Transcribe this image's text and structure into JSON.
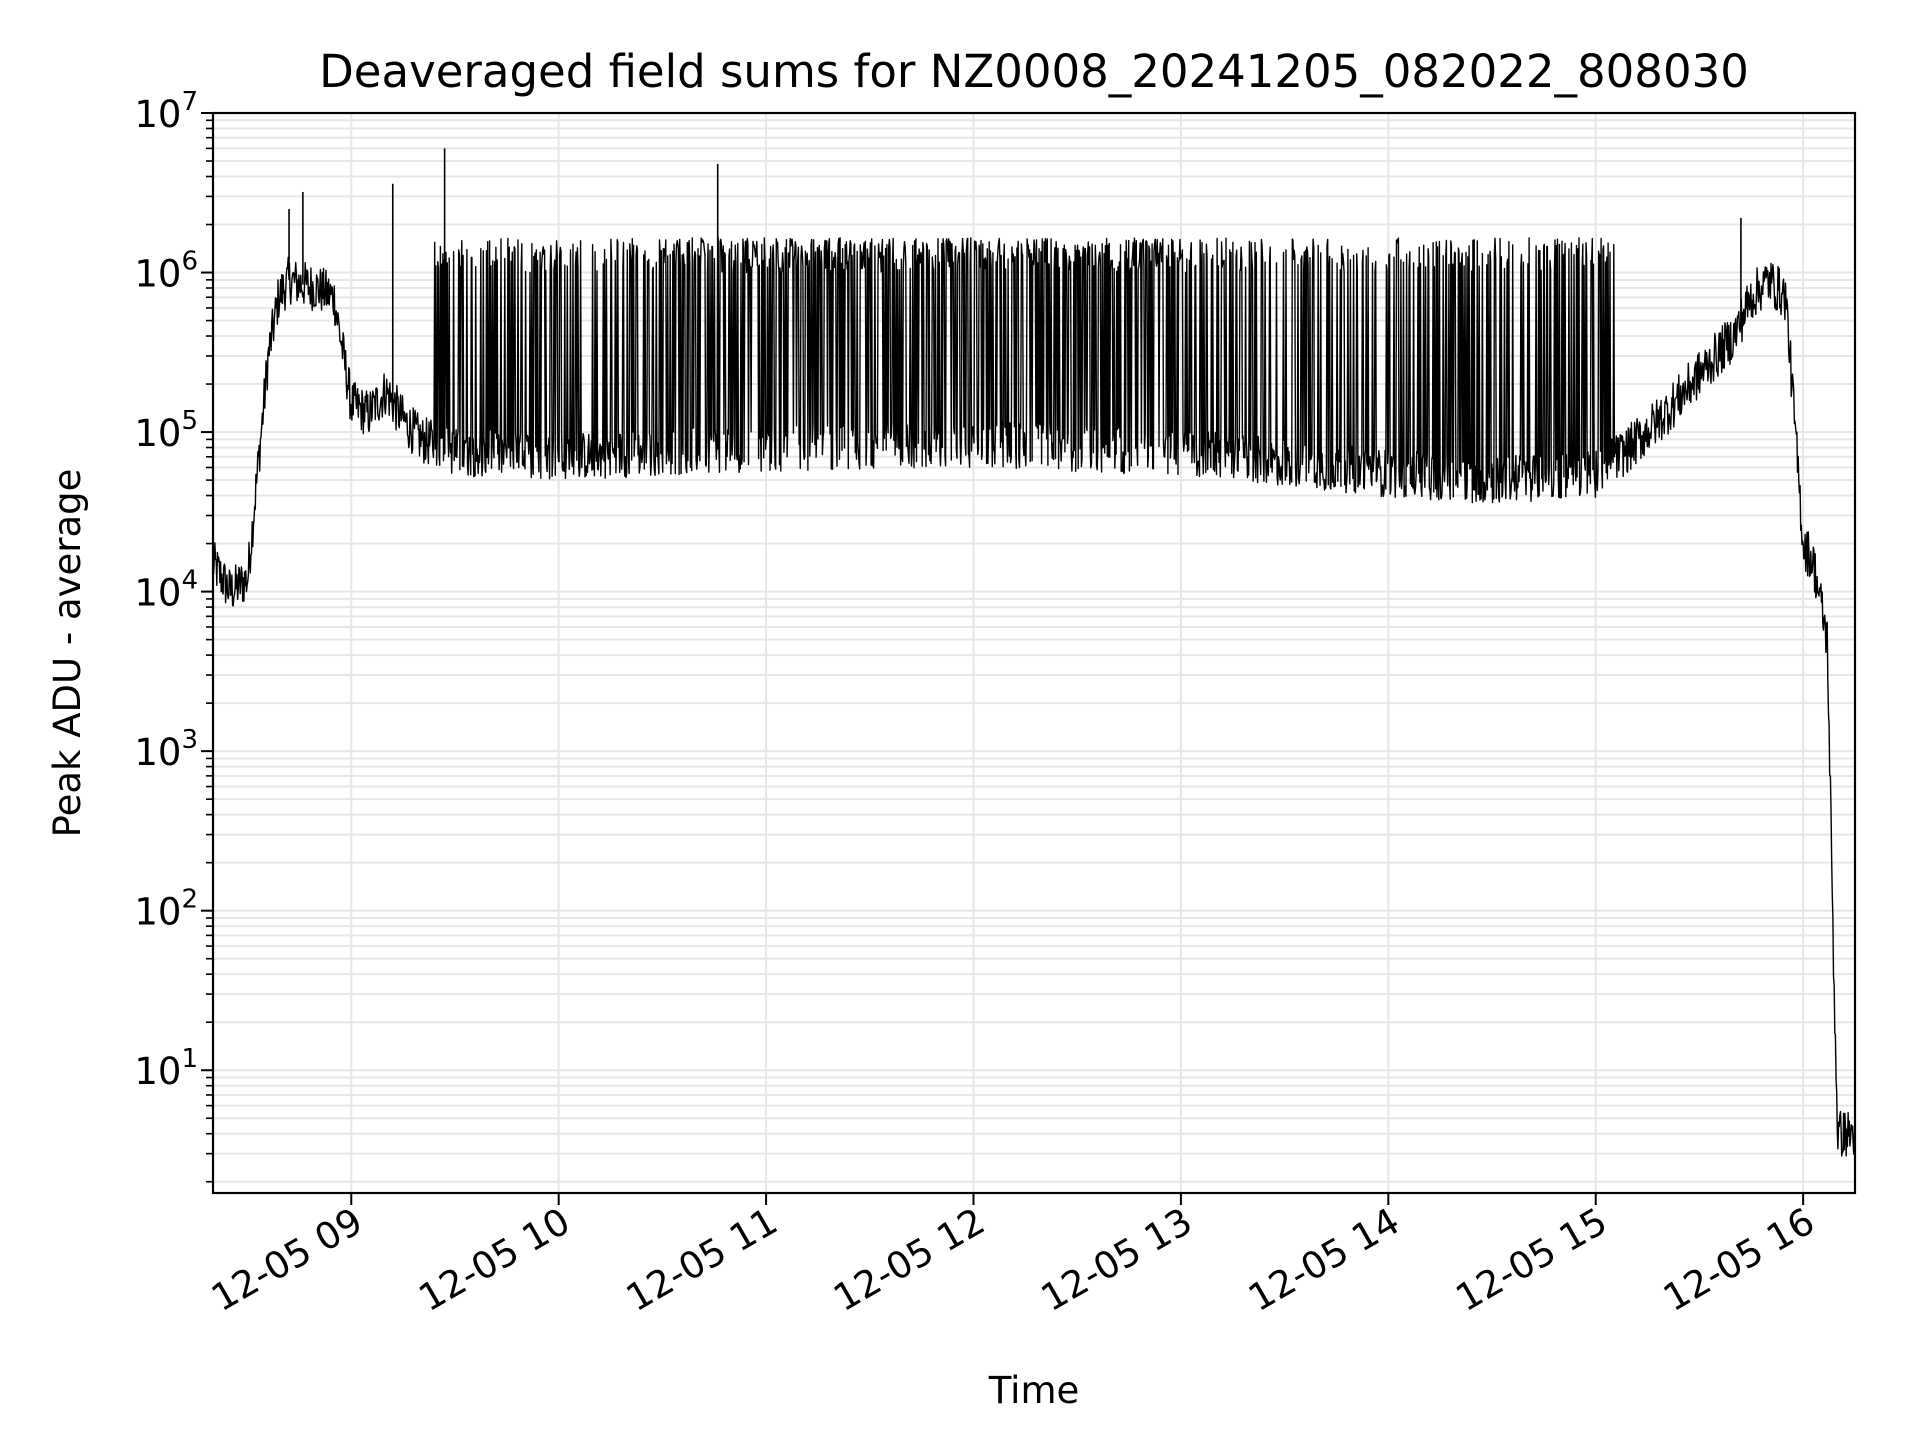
{
  "chart_data": {
    "type": "line",
    "title": "Deaveraged field sums for NZ0008_20241205_082022_808030",
    "xlabel": "Time",
    "ylabel": "Peak ADU - average",
    "yscale": "log",
    "ylim": [
      1.7,
      10000000
    ],
    "xlim": [
      "2024-12-05 08:20",
      "2024-12-05 16:15"
    ],
    "grid": true,
    "line_color": "#000000",
    "grid_color": "#e6e6e6",
    "x_ticks": [
      {
        "time": "2024-12-05 09:00",
        "label": "12-05 09"
      },
      {
        "time": "2024-12-05 10:00",
        "label": "12-05 10"
      },
      {
        "time": "2024-12-05 11:00",
        "label": "12-05 11"
      },
      {
        "time": "2024-12-05 12:00",
        "label": "12-05 12"
      },
      {
        "time": "2024-12-05 13:00",
        "label": "12-05 13"
      },
      {
        "time": "2024-12-05 14:00",
        "label": "12-05 14"
      },
      {
        "time": "2024-12-05 15:00",
        "label": "12-05 15"
      },
      {
        "time": "2024-12-05 16:00",
        "label": "12-05 16"
      }
    ],
    "y_ticks": [
      {
        "value": 10,
        "base": "10",
        "exp": "1"
      },
      {
        "value": 100,
        "base": "10",
        "exp": "2"
      },
      {
        "value": 1000,
        "base": "10",
        "exp": "3"
      },
      {
        "value": 10000,
        "base": "10",
        "exp": "4"
      },
      {
        "value": 100000,
        "base": "10",
        "exp": "5"
      },
      {
        "value": 1000000,
        "base": "10",
        "exp": "6"
      },
      {
        "value": 10000000,
        "base": "10",
        "exp": "7"
      }
    ],
    "series": [
      {
        "baseline": {
          "x": [
            "2024-12-05 08:20",
            "2024-12-05 08:25",
            "2024-12-05 08:30",
            "2024-12-05 08:33",
            "2024-12-05 08:36",
            "2024-12-05 08:39",
            "2024-12-05 08:42",
            "2024-12-05 08:45",
            "2024-12-05 08:50",
            "2024-12-05 08:55",
            "2024-12-05 09:00",
            "2024-12-05 09:05",
            "2024-12-05 09:10",
            "2024-12-05 09:15",
            "2024-12-05 09:20",
            "2024-12-05 09:30",
            "2024-12-05 10:00",
            "2024-12-05 10:30",
            "2024-12-05 11:00",
            "2024-12-05 12:00",
            "2024-12-05 13:00",
            "2024-12-05 14:00",
            "2024-12-05 14:30",
            "2024-12-05 15:00",
            "2024-12-05 15:10",
            "2024-12-05 15:20",
            "2024-12-05 15:30",
            "2024-12-05 15:40",
            "2024-12-05 15:45",
            "2024-12-05 15:50",
            "2024-12-05 15:55",
            "2024-12-05 16:00",
            "2024-12-05 16:03",
            "2024-12-05 16:07",
            "2024-12-05 16:09",
            "2024-12-05 16:10",
            "2024-12-05 16:12",
            "2024-12-05 16:15"
          ],
          "y": [
            15000,
            10000,
            12000,
            60000,
            300000,
            700000,
            900000,
            850000,
            800000,
            700000,
            150000,
            130000,
            180000,
            120000,
            90000,
            75000,
            70000,
            75000,
            80000,
            85000,
            75000,
            55000,
            50000,
            55000,
            80000,
            130000,
            230000,
            400000,
            700000,
            900000,
            700000,
            20000,
            15000,
            5000,
            30,
            4,
            4,
            4
          ]
        },
        "peaks": {
          "x": [
            "2024-12-05 08:42",
            "2024-12-05 08:46",
            "2024-12-05 09:12",
            "2024-12-05 09:27",
            "2024-12-05 10:46",
            "2024-12-05 15:42"
          ],
          "y": [
            2500000,
            3200000,
            3600000,
            6000000,
            4800000,
            2200000
          ]
        }
      }
    ]
  }
}
